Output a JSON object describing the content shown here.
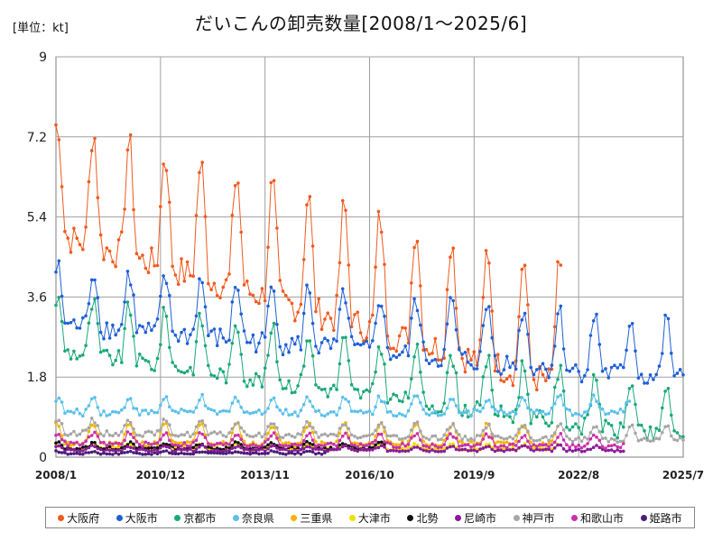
{
  "chart_data": {
    "type": "line",
    "title": "だいこんの卸売数量[2008/1～2025/6]",
    "unit_label": "[単位：kt]",
    "y_ticks": [
      "0",
      "1.8",
      "3.6",
      "5.4",
      "7.2",
      "9"
    ],
    "ylim": [
      0,
      9
    ],
    "x_tick_labels": [
      "2008/1",
      "2010/12",
      "2013/11",
      "2016/10",
      "2019/9",
      "2022/8",
      "2025/7"
    ],
    "x_tick_months": [
      0,
      35,
      70,
      105,
      140,
      175,
      210
    ],
    "grid": true,
    "legend_position": "bottom",
    "series": [
      {
        "name": "大阪府",
        "color": "#f05a1e",
        "end": 169,
        "base": 5.0,
        "amp": 2.6,
        "noise": 0.35,
        "trend": -0.004
      },
      {
        "name": "大阪市",
        "color": "#1f5fd6",
        "end": 210,
        "base": 3.0,
        "amp": 1.3,
        "noise": 0.25,
        "trend": -0.002
      },
      {
        "name": "京都市",
        "color": "#1aa87a",
        "end": 210,
        "base": 2.4,
        "amp": 1.2,
        "noise": 0.2,
        "trend": -0.004
      },
      {
        "name": "奈良県",
        "color": "#5bc0eb",
        "end": 192,
        "base": 1.0,
        "amp": 0.35,
        "noise": 0.08,
        "trend": 0.0
      },
      {
        "name": "三重県",
        "color": "#f5b400",
        "end": 168,
        "base": 0.3,
        "amp": 0.45,
        "noise": 0.06,
        "trend": 0.0
      },
      {
        "name": "大津市",
        "color": "#f0e000",
        "end": 168,
        "base": 0.18,
        "amp": 0.1,
        "noise": 0.03,
        "trend": 0.0
      },
      {
        "name": "北勢",
        "color": "#111111",
        "end": 110,
        "base": 0.2,
        "amp": 0.12,
        "noise": 0.04,
        "trend": 0.0
      },
      {
        "name": "尼崎市",
        "color": "#8a1a9b",
        "end": 190,
        "base": 0.15,
        "amp": 0.1,
        "noise": 0.03,
        "trend": 0.0
      },
      {
        "name": "神戸市",
        "color": "#a6a6a6",
        "end": 210,
        "base": 0.55,
        "amp": 0.3,
        "noise": 0.06,
        "trend": -0.0015
      },
      {
        "name": "和歌山市",
        "color": "#c832a8",
        "end": 190,
        "base": 0.3,
        "amp": 0.25,
        "noise": 0.05,
        "trend": -0.001
      },
      {
        "name": "姫路市",
        "color": "#4b1d7a",
        "end": 90,
        "base": 0.08,
        "amp": 0.05,
        "noise": 0.02,
        "trend": 0.0
      }
    ]
  }
}
